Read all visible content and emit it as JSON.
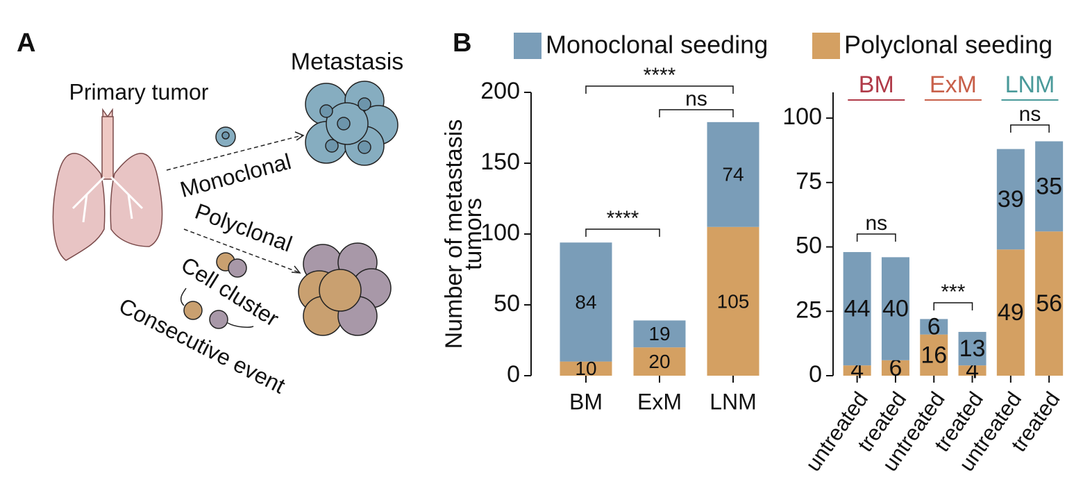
{
  "panel_a": {
    "label": "A",
    "primary_tumor": "Primary tumor",
    "metastasis": "Metastasis",
    "monoclonal": "Monoclonal",
    "polyclonal": "Polyclonal",
    "cell_cluster": "Cell cluster",
    "consecutive_event": "Consecutive event"
  },
  "panel_b": {
    "label": "B"
  },
  "chart_data": [
    {
      "type": "bar",
      "stacked": true,
      "y_label": [
        "Number of metastasis",
        "tumors"
      ],
      "categories": [
        "BM",
        "ExM",
        "LNM"
      ],
      "series": [
        {
          "name": "Monoclonal seeding",
          "color": "#7a9db8",
          "values": [
            84,
            19,
            74
          ]
        },
        {
          "name": "Polyclonal seeding",
          "color": "#d4a062",
          "values": [
            10,
            20,
            105
          ]
        }
      ],
      "ylim": [
        0,
        200
      ],
      "yticks": [
        0,
        50,
        100,
        150,
        200
      ],
      "annotations": [
        {
          "text": "****",
          "between": [
            0,
            2
          ]
        },
        {
          "text": "ns",
          "between": [
            1,
            2
          ]
        },
        {
          "text": "****",
          "between": [
            0,
            1
          ]
        }
      ]
    },
    {
      "type": "bar",
      "stacked": true,
      "groups": [
        {
          "name": "BM",
          "color": "#b03a48"
        },
        {
          "name": "ExM",
          "color": "#c8604a"
        },
        {
          "name": "LNM",
          "color": "#4a9a9a"
        }
      ],
      "categories": [
        "untreated",
        "treated",
        "untreated",
        "treated",
        "untreated",
        "treated"
      ],
      "series": [
        {
          "color": "#7a9db8",
          "values": [
            44,
            40,
            6,
            13,
            39,
            35
          ]
        },
        {
          "color": "#d4a062",
          "values": [
            4,
            6,
            16,
            4,
            49,
            56
          ]
        }
      ],
      "ylim": [
        0,
        110
      ],
      "yticks": [
        0,
        25,
        50,
        75,
        100
      ],
      "annotations": [
        {
          "text": "ns",
          "between": [
            0,
            1
          ]
        },
        {
          "text": "***",
          "between": [
            2,
            3
          ]
        },
        {
          "text": "ns",
          "between": [
            4,
            5
          ]
        }
      ]
    }
  ]
}
